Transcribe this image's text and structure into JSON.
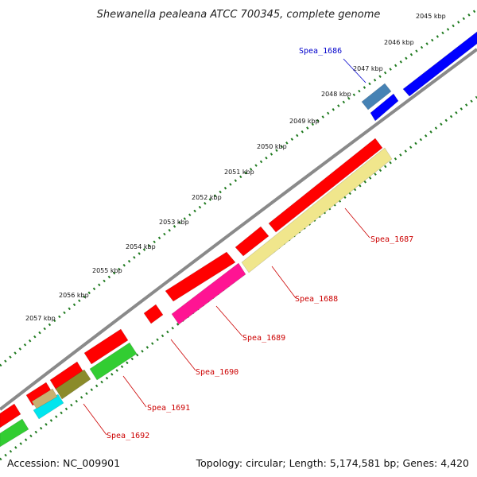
{
  "header": {
    "title": "Shewanella pealeana ATCC 700345, complete genome"
  },
  "footer": {
    "accession": "Accession: NC_009901",
    "stats": "Topology: circular; Length: 5,174,581 bp; Genes: 4,420"
  },
  "colors": {
    "backbone": "#8a8a8a",
    "tick": "#1f7a1f",
    "label_blue": "#0000cc",
    "label_red": "#cc0000",
    "red": "#ff0000",
    "blue": "#0000ff",
    "steelblue": "#4682b4",
    "khaki": "#f0e68c",
    "magenta": "#ff1493",
    "green": "#32cd32",
    "cyan": "#00e5ee",
    "olive": "#8b8b2a",
    "tan": "#c8b070"
  },
  "scale_labels": [
    "2045 kbp",
    "2046 kbp",
    "2047 kbp",
    "2048 kbp",
    "2049 kbp",
    "2050 kbp",
    "2051 kbp",
    "2052 kbp",
    "2053 kbp",
    "2054 kbp",
    "2055 kbp",
    "2056 kbp",
    "2057 kbp"
  ],
  "gene_labels": [
    "Spea_1686",
    "Spea_1687",
    "Spea_1688",
    "Spea_1689",
    "Spea_1690",
    "Spea_1691",
    "Spea_1692"
  ]
}
